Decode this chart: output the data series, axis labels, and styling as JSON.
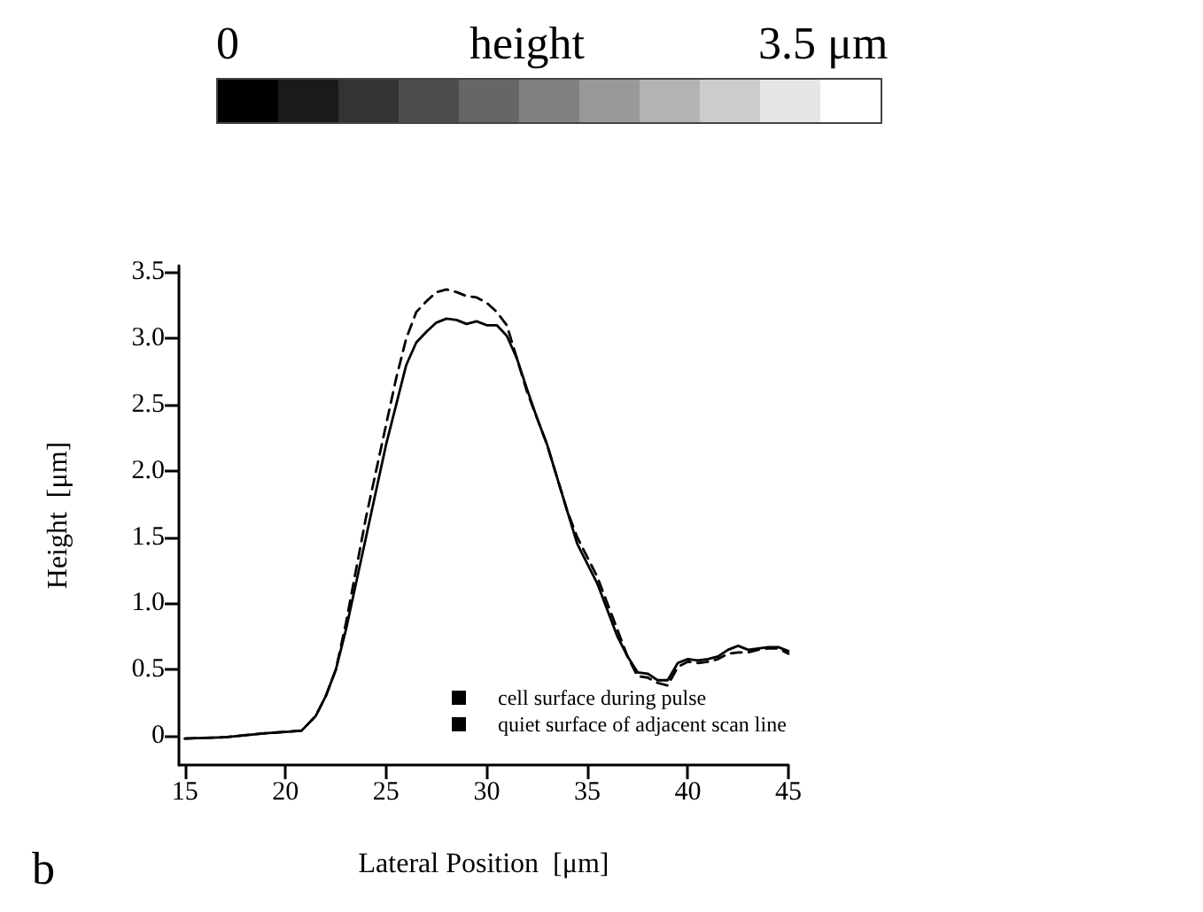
{
  "chart_data": {
    "type": "line",
    "xlabel": "Lateral Position  [μm]",
    "ylabel": "Height  [μm]",
    "annotations": [
      "0",
      "height",
      "3.5 μm",
      "b"
    ],
    "xlim": [
      14.7,
      45
    ],
    "xticks": [
      15,
      20,
      25,
      30,
      35,
      40,
      45
    ],
    "ylim": [
      -0.22,
      3.55
    ],
    "yticks": [
      0,
      {
        "value": 0.5,
        "label": "0.5"
      },
      {
        "value": 1,
        "label": "1.0"
      },
      {
        "value": 1.5,
        "label": "1.5"
      },
      {
        "value": 2,
        "label": "2.0"
      },
      {
        "value": 2.5,
        "label": "2.5"
      },
      {
        "value": 3,
        "label": "3.0"
      },
      {
        "value": 3.5,
        "label": "3.5"
      }
    ],
    "grid": false,
    "legend": "bottom",
    "marker": "none",
    "x": [
      15,
      17,
      19,
      20,
      20.8,
      21.5,
      22,
      22.5,
      23,
      23.5,
      24,
      24.5,
      25,
      25.5,
      26,
      26.5,
      27,
      27.5,
      28,
      28.5,
      29,
      29.5,
      30,
      30.5,
      31,
      31.5,
      32,
      32.5,
      33,
      33.5,
      34,
      34.5,
      35,
      35.5,
      36,
      36.5,
      37,
      37.5,
      38,
      38.5,
      39,
      39.5,
      40,
      40.5,
      41,
      41.5,
      42,
      42.5,
      43,
      43.5,
      44,
      44.5,
      45
    ],
    "series": [
      {
        "name": "cell surface during pulse",
        "color": "#000000",
        "line_style": "dashed",
        "values": [
          -0.02,
          -0.01,
          0.02,
          0.03,
          0.04,
          0.15,
          0.3,
          0.5,
          0.85,
          1.25,
          1.65,
          2.0,
          2.35,
          2.7,
          3.0,
          3.2,
          3.28,
          3.35,
          3.37,
          3.35,
          3.32,
          3.31,
          3.27,
          3.2,
          3.1,
          2.85,
          2.6,
          2.4,
          2.2,
          1.95,
          1.7,
          1.5,
          1.35,
          1.2,
          1.0,
          0.8,
          0.6,
          0.45,
          0.44,
          0.4,
          0.38,
          0.52,
          0.56,
          0.55,
          0.56,
          0.58,
          0.62,
          0.63,
          0.63,
          0.65,
          0.66,
          0.66,
          0.62
        ]
      },
      {
        "name": "quiet surface of adjacent scan line",
        "color": "#000000",
        "line_style": "solid",
        "values": [
          -0.02,
          -0.01,
          0.02,
          0.03,
          0.04,
          0.15,
          0.3,
          0.5,
          0.8,
          1.15,
          1.5,
          1.85,
          2.2,
          2.5,
          2.8,
          2.97,
          3.05,
          3.12,
          3.15,
          3.14,
          3.11,
          3.13,
          3.1,
          3.1,
          3.02,
          2.85,
          2.62,
          2.4,
          2.2,
          1.95,
          1.7,
          1.45,
          1.3,
          1.15,
          0.95,
          0.75,
          0.6,
          0.48,
          0.47,
          0.42,
          0.42,
          0.55,
          0.58,
          0.57,
          0.58,
          0.6,
          0.65,
          0.68,
          0.65,
          0.66,
          0.67,
          0.67,
          0.64
        ]
      }
    ]
  }
}
